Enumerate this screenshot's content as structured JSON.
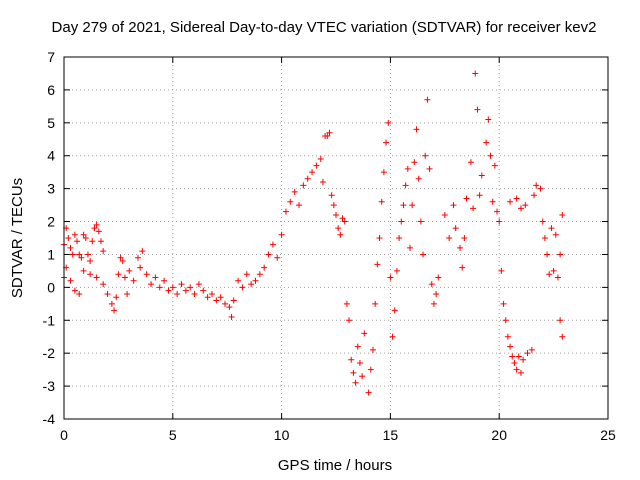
{
  "chart_data": {
    "type": "scatter",
    "title": "Day 279 of 2021, Sidereal Day-to-day VTEC variation (SDTVAR) for receiver kev2",
    "xlabel": "GPS time / hours",
    "ylabel": "SDTVAR / TECUs",
    "xlim": [
      0,
      25
    ],
    "ylim": [
      -4,
      7
    ],
    "xticks": [
      "0",
      "5",
      "10",
      "15",
      "20",
      "25"
    ],
    "yticks": [
      "-4",
      "-3",
      "-2",
      "-1",
      "0",
      "1",
      "2",
      "3",
      "4",
      "5",
      "6",
      "7"
    ],
    "grid": true,
    "marker": "+",
    "color": "#ff0000",
    "series": [
      {
        "name": "SDTVAR",
        "points": [
          [
            0.0,
            1.3
          ],
          [
            0.0,
            0.3
          ],
          [
            0.1,
            1.8
          ],
          [
            0.2,
            1.5
          ],
          [
            0.3,
            1.2
          ],
          [
            0.4,
            1.0
          ],
          [
            0.5,
            1.6
          ],
          [
            0.6,
            1.4
          ],
          [
            0.7,
            1.0
          ],
          [
            0.8,
            0.9
          ],
          [
            0.9,
            1.6
          ],
          [
            1.0,
            1.5
          ],
          [
            1.1,
            1.0
          ],
          [
            1.2,
            0.8
          ],
          [
            1.3,
            1.4
          ],
          [
            1.4,
            1.8
          ],
          [
            1.5,
            1.9
          ],
          [
            1.6,
            1.7
          ],
          [
            1.7,
            1.4
          ],
          [
            1.8,
            1.1
          ],
          [
            0.1,
            0.6
          ],
          [
            0.3,
            0.2
          ],
          [
            0.5,
            -0.1
          ],
          [
            0.7,
            -0.2
          ],
          [
            0.9,
            0.5
          ],
          [
            1.2,
            0.4
          ],
          [
            1.5,
            0.3
          ],
          [
            1.8,
            0.1
          ],
          [
            2.0,
            -0.2
          ],
          [
            2.2,
            -0.5
          ],
          [
            2.3,
            -0.7
          ],
          [
            2.4,
            -0.3
          ],
          [
            2.5,
            0.4
          ],
          [
            2.6,
            0.9
          ],
          [
            2.7,
            0.8
          ],
          [
            2.8,
            0.3
          ],
          [
            2.9,
            -0.2
          ],
          [
            3.0,
            0.5
          ],
          [
            3.2,
            0.2
          ],
          [
            3.4,
            0.9
          ],
          [
            3.5,
            0.6
          ],
          [
            3.6,
            1.1
          ],
          [
            3.8,
            0.4
          ],
          [
            4.0,
            0.1
          ],
          [
            4.2,
            0.3
          ],
          [
            4.4,
            0.0
          ],
          [
            4.6,
            0.2
          ],
          [
            4.8,
            -0.1
          ],
          [
            5.0,
            0.0
          ],
          [
            5.2,
            -0.2
          ],
          [
            5.4,
            0.1
          ],
          [
            5.6,
            -0.1
          ],
          [
            5.8,
            0.0
          ],
          [
            6.0,
            -0.2
          ],
          [
            6.2,
            0.1
          ],
          [
            6.4,
            -0.1
          ],
          [
            6.6,
            -0.3
          ],
          [
            6.8,
            -0.2
          ],
          [
            7.0,
            -0.4
          ],
          [
            7.2,
            -0.3
          ],
          [
            7.4,
            -0.5
          ],
          [
            7.6,
            -0.6
          ],
          [
            7.7,
            -0.9
          ],
          [
            7.8,
            -0.4
          ],
          [
            8.0,
            0.2
          ],
          [
            8.2,
            0.0
          ],
          [
            8.4,
            0.4
          ],
          [
            8.6,
            0.1
          ],
          [
            8.8,
            0.2
          ],
          [
            9.0,
            0.4
          ],
          [
            9.2,
            0.6
          ],
          [
            9.4,
            1.0
          ],
          [
            9.6,
            1.3
          ],
          [
            9.8,
            0.9
          ],
          [
            10.0,
            1.6
          ],
          [
            10.2,
            2.3
          ],
          [
            10.4,
            2.6
          ],
          [
            10.6,
            2.9
          ],
          [
            10.8,
            2.5
          ],
          [
            11.0,
            3.1
          ],
          [
            11.2,
            3.3
          ],
          [
            11.4,
            3.5
          ],
          [
            11.6,
            3.7
          ],
          [
            11.8,
            3.9
          ],
          [
            11.9,
            3.2
          ],
          [
            12.0,
            4.6
          ],
          [
            12.1,
            4.6
          ],
          [
            12.2,
            4.7
          ],
          [
            12.3,
            2.8
          ],
          [
            12.4,
            2.5
          ],
          [
            12.5,
            2.2
          ],
          [
            12.6,
            1.8
          ],
          [
            12.7,
            1.6
          ],
          [
            12.8,
            2.1
          ],
          [
            12.9,
            2.0
          ],
          [
            13.0,
            -0.5
          ],
          [
            13.1,
            -1.0
          ],
          [
            13.2,
            -2.2
          ],
          [
            13.3,
            -2.6
          ],
          [
            13.4,
            -2.9
          ],
          [
            13.5,
            -1.8
          ],
          [
            13.6,
            -2.3
          ],
          [
            13.7,
            -2.7
          ],
          [
            13.8,
            -1.4
          ],
          [
            14.0,
            -3.2
          ],
          [
            14.1,
            -2.5
          ],
          [
            14.2,
            -1.9
          ],
          [
            14.3,
            -0.5
          ],
          [
            14.4,
            0.7
          ],
          [
            14.5,
            1.5
          ],
          [
            14.6,
            2.6
          ],
          [
            14.7,
            3.5
          ],
          [
            14.8,
            4.4
          ],
          [
            14.9,
            5.0
          ],
          [
            15.0,
            0.3
          ],
          [
            15.1,
            -1.5
          ],
          [
            15.2,
            -0.7
          ],
          [
            15.3,
            0.5
          ],
          [
            15.4,
            1.5
          ],
          [
            15.5,
            2.0
          ],
          [
            15.6,
            2.5
          ],
          [
            15.7,
            3.1
          ],
          [
            15.8,
            3.6
          ],
          [
            15.9,
            1.2
          ],
          [
            16.0,
            2.5
          ],
          [
            16.1,
            3.8
          ],
          [
            16.2,
            4.8
          ],
          [
            16.3,
            3.3
          ],
          [
            16.4,
            2.0
          ],
          [
            16.5,
            1.0
          ],
          [
            16.6,
            4.0
          ],
          [
            16.7,
            5.7
          ],
          [
            16.8,
            3.6
          ],
          [
            16.9,
            0.1
          ],
          [
            17.0,
            -0.5
          ],
          [
            17.1,
            -0.2
          ],
          [
            17.2,
            0.3
          ],
          [
            17.5,
            2.2
          ],
          [
            17.7,
            1.5
          ],
          [
            17.9,
            2.5
          ],
          [
            18.0,
            1.8
          ],
          [
            18.2,
            1.2
          ],
          [
            18.3,
            0.6
          ],
          [
            18.4,
            1.5
          ],
          [
            18.5,
            2.7
          ],
          [
            18.7,
            3.8
          ],
          [
            18.8,
            2.4
          ],
          [
            18.9,
            6.5
          ],
          [
            19.0,
            5.4
          ],
          [
            19.1,
            2.8
          ],
          [
            19.2,
            3.4
          ],
          [
            19.4,
            4.4
          ],
          [
            19.5,
            5.1
          ],
          [
            19.6,
            4.0
          ],
          [
            19.7,
            2.6
          ],
          [
            19.8,
            3.7
          ],
          [
            19.9,
            2.3
          ],
          [
            20.0,
            2.0
          ],
          [
            20.1,
            0.5
          ],
          [
            20.2,
            -0.5
          ],
          [
            20.3,
            -1.0
          ],
          [
            20.4,
            -1.5
          ],
          [
            20.5,
            -1.8
          ],
          [
            20.6,
            -2.1
          ],
          [
            20.7,
            -2.3
          ],
          [
            20.8,
            -2.5
          ],
          [
            20.9,
            -2.1
          ],
          [
            21.0,
            -2.6
          ],
          [
            21.1,
            -2.2
          ],
          [
            21.3,
            -2.0
          ],
          [
            21.5,
            -1.9
          ],
          [
            21.6,
            2.8
          ],
          [
            21.7,
            3.1
          ],
          [
            21.9,
            3.0
          ],
          [
            22.0,
            2.0
          ],
          [
            22.1,
            1.5
          ],
          [
            22.2,
            1.0
          ],
          [
            22.3,
            0.4
          ],
          [
            22.4,
            1.8
          ],
          [
            22.5,
            0.5
          ],
          [
            22.6,
            1.6
          ],
          [
            22.7,
            0.3
          ],
          [
            22.8,
            -1.0
          ],
          [
            22.9,
            -1.5
          ],
          [
            22.9,
            2.2
          ],
          [
            22.8,
            1.0
          ],
          [
            20.5,
            2.6
          ],
          [
            21.0,
            2.4
          ],
          [
            20.8,
            2.7
          ],
          [
            21.2,
            2.5
          ]
        ]
      }
    ]
  }
}
